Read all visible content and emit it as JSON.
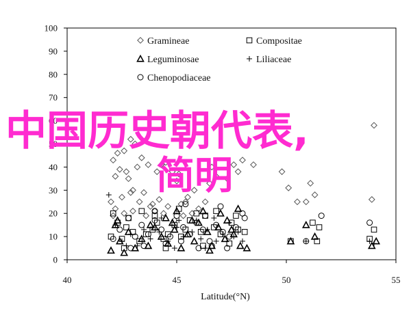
{
  "chart_data": {
    "type": "scatter",
    "xlabel": "Latitude(°N)",
    "ylabel": "",
    "xlim": [
      40,
      55
    ],
    "ylim": [
      0,
      100
    ],
    "xticks": [
      40,
      45,
      50,
      55
    ],
    "yticks": [
      0,
      10,
      20,
      30,
      40,
      50,
      60,
      70,
      80,
      90,
      100
    ],
    "grid": false,
    "legend_position": "top-center",
    "series": [
      {
        "name": "Gramineae",
        "marker": "diamond",
        "points": [
          [
            42.3,
            46
          ],
          [
            42.6,
            47
          ],
          [
            42.9,
            52
          ],
          [
            43.1,
            50
          ],
          [
            42.1,
            43
          ],
          [
            42.2,
            36
          ],
          [
            42.4,
            39
          ],
          [
            42.7,
            38
          ],
          [
            42.8,
            35
          ],
          [
            43.0,
            30
          ],
          [
            43.2,
            40
          ],
          [
            43.4,
            44
          ],
          [
            43.7,
            41
          ],
          [
            44.1,
            38
          ],
          [
            44.3,
            41
          ],
          [
            44.5,
            42
          ],
          [
            44.8,
            38
          ],
          [
            45.0,
            34
          ],
          [
            45.1,
            37
          ],
          [
            42.0,
            25
          ],
          [
            42.5,
            27
          ],
          [
            42.9,
            29
          ],
          [
            43.3,
            25
          ],
          [
            43.5,
            29
          ],
          [
            43.8,
            23
          ],
          [
            44.2,
            26
          ],
          [
            44.6,
            23
          ],
          [
            45.2,
            24
          ],
          [
            45.5,
            27
          ],
          [
            45.8,
            30
          ],
          [
            42.2,
            22
          ],
          [
            42.6,
            20
          ],
          [
            43.0,
            21
          ],
          [
            43.6,
            19
          ],
          [
            44.0,
            21
          ],
          [
            44.4,
            20
          ],
          [
            44.9,
            17
          ],
          [
            45.3,
            19
          ],
          [
            45.7,
            20
          ],
          [
            46.0,
            22
          ],
          [
            46.3,
            25
          ],
          [
            46.5,
            33
          ],
          [
            46.8,
            36
          ],
          [
            47.3,
            35
          ],
          [
            47.8,
            38
          ],
          [
            48.0,
            43
          ],
          [
            48.5,
            41
          ],
          [
            49.8,
            38
          ],
          [
            50.1,
            31
          ],
          [
            50.5,
            25
          ],
          [
            51.1,
            33
          ],
          [
            50.9,
            25
          ],
          [
            51.3,
            28
          ],
          [
            53.9,
            26
          ],
          [
            54.0,
            58
          ],
          [
            42.1,
            19
          ],
          [
            43.9,
            24
          ],
          [
            46.6,
            40
          ],
          [
            47.6,
            41
          ],
          [
            45.4,
            25
          ]
        ]
      },
      {
        "name": "Compositae",
        "marker": "square",
        "points": [
          [
            42.0,
            10
          ],
          [
            42.3,
            16
          ],
          [
            42.5,
            9
          ],
          [
            42.7,
            14
          ],
          [
            43.0,
            12
          ],
          [
            43.3,
            8
          ],
          [
            43.6,
            11
          ],
          [
            43.9,
            13
          ],
          [
            44.1,
            16
          ],
          [
            44.4,
            9
          ],
          [
            44.6,
            11
          ],
          [
            44.9,
            15
          ],
          [
            45.2,
            10
          ],
          [
            45.4,
            13
          ],
          [
            45.6,
            17
          ],
          [
            46.1,
            12
          ],
          [
            46.3,
            19
          ],
          [
            46.7,
            14
          ],
          [
            47.0,
            11
          ],
          [
            47.5,
            16
          ],
          [
            47.8,
            13
          ],
          [
            48.1,
            12
          ],
          [
            42.1,
            20
          ],
          [
            42.8,
            18
          ],
          [
            43.4,
            21
          ],
          [
            44.0,
            19
          ],
          [
            45.1,
            22
          ],
          [
            45.9,
            20
          ],
          [
            46.8,
            21
          ],
          [
            47.7,
            19
          ],
          [
            50.2,
            8
          ],
          [
            51.2,
            16
          ],
          [
            51.4,
            8
          ],
          [
            51.5,
            14
          ],
          [
            53.8,
            9
          ],
          [
            54.0,
            13
          ],
          [
            42.6,
            5
          ],
          [
            44.5,
            5
          ],
          [
            46.2,
            6
          ],
          [
            47.4,
            7
          ]
        ]
      },
      {
        "name": "Leguminosae",
        "marker": "triangle",
        "points": [
          [
            42.0,
            4
          ],
          [
            42.2,
            15
          ],
          [
            42.4,
            8
          ],
          [
            42.6,
            3
          ],
          [
            42.8,
            12
          ],
          [
            43.1,
            5
          ],
          [
            43.4,
            9
          ],
          [
            43.7,
            6
          ],
          [
            44.0,
            14
          ],
          [
            44.3,
            10
          ],
          [
            44.6,
            7
          ],
          [
            44.9,
            13
          ],
          [
            45.2,
            5
          ],
          [
            45.5,
            11
          ],
          [
            45.8,
            8
          ],
          [
            46.0,
            16
          ],
          [
            46.4,
            12
          ],
          [
            46.6,
            6
          ],
          [
            46.9,
            14
          ],
          [
            47.2,
            9
          ],
          [
            47.6,
            11
          ],
          [
            47.9,
            6
          ],
          [
            48.2,
            5
          ],
          [
            44.5,
            18
          ],
          [
            45.0,
            21
          ],
          [
            45.7,
            17
          ],
          [
            46.2,
            21
          ],
          [
            47.0,
            20
          ],
          [
            47.3,
            17
          ],
          [
            47.8,
            22
          ],
          [
            50.2,
            8
          ],
          [
            50.9,
            15
          ],
          [
            51.3,
            10
          ],
          [
            53.9,
            6
          ],
          [
            54.1,
            8
          ],
          [
            42.3,
            17
          ],
          [
            43.8,
            15
          ],
          [
            44.8,
            16
          ],
          [
            46.5,
            4
          ],
          [
            47.5,
            13
          ]
        ]
      },
      {
        "name": "Liliaceae",
        "marker": "plus",
        "points": [
          [
            41.9,
            28
          ],
          [
            42.2,
            15
          ],
          [
            42.5,
            8
          ],
          [
            42.9,
            11
          ],
          [
            43.2,
            6
          ],
          [
            43.5,
            13
          ],
          [
            43.8,
            9
          ],
          [
            44.2,
            12
          ],
          [
            44.6,
            8
          ],
          [
            45.0,
            14
          ],
          [
            45.3,
            10
          ],
          [
            45.7,
            12
          ],
          [
            46.1,
            9
          ],
          [
            46.4,
            13
          ],
          [
            46.8,
            8
          ],
          [
            47.1,
            11
          ],
          [
            47.6,
            10
          ],
          [
            48.0,
            8
          ],
          [
            44.3,
            18
          ],
          [
            45.1,
            17
          ],
          [
            45.9,
            17
          ],
          [
            46.7,
            18
          ],
          [
            47.4,
            16
          ],
          [
            50.9,
            8
          ],
          [
            53.8,
            8
          ],
          [
            54.0,
            7
          ],
          [
            42.7,
            6
          ],
          [
            44.9,
            5
          ],
          [
            46.3,
            5
          ],
          [
            47.8,
            12
          ]
        ]
      },
      {
        "name": "Chenopodiaceae",
        "marker": "circle",
        "points": [
          [
            42.1,
            9
          ],
          [
            42.4,
            13
          ],
          [
            42.8,
            18
          ],
          [
            43.1,
            10
          ],
          [
            43.4,
            15
          ],
          [
            43.7,
            11
          ],
          [
            44.0,
            17
          ],
          [
            44.3,
            13
          ],
          [
            44.7,
            10
          ],
          [
            45.0,
            19
          ],
          [
            45.3,
            14
          ],
          [
            45.6,
            11
          ],
          [
            45.9,
            16
          ],
          [
            46.2,
            13
          ],
          [
            46.5,
            8
          ],
          [
            46.8,
            15
          ],
          [
            47.1,
            12
          ],
          [
            47.4,
            10
          ],
          [
            47.7,
            14
          ],
          [
            48.1,
            18
          ],
          [
            42.9,
            5
          ],
          [
            43.5,
            6
          ],
          [
            44.5,
            7
          ],
          [
            45.2,
            8
          ],
          [
            46.0,
            5
          ],
          [
            46.6,
            6
          ],
          [
            47.3,
            5
          ],
          [
            50.9,
            8
          ],
          [
            51.6,
            19
          ],
          [
            53.8,
            16
          ],
          [
            44.0,
            21
          ],
          [
            45.4,
            24
          ],
          [
            46.3,
            19
          ],
          [
            47.0,
            23
          ],
          [
            48.0,
            20
          ]
        ]
      }
    ]
  },
  "overlay": {
    "line1": "中国历史朝代表,",
    "line2": "简明"
  }
}
